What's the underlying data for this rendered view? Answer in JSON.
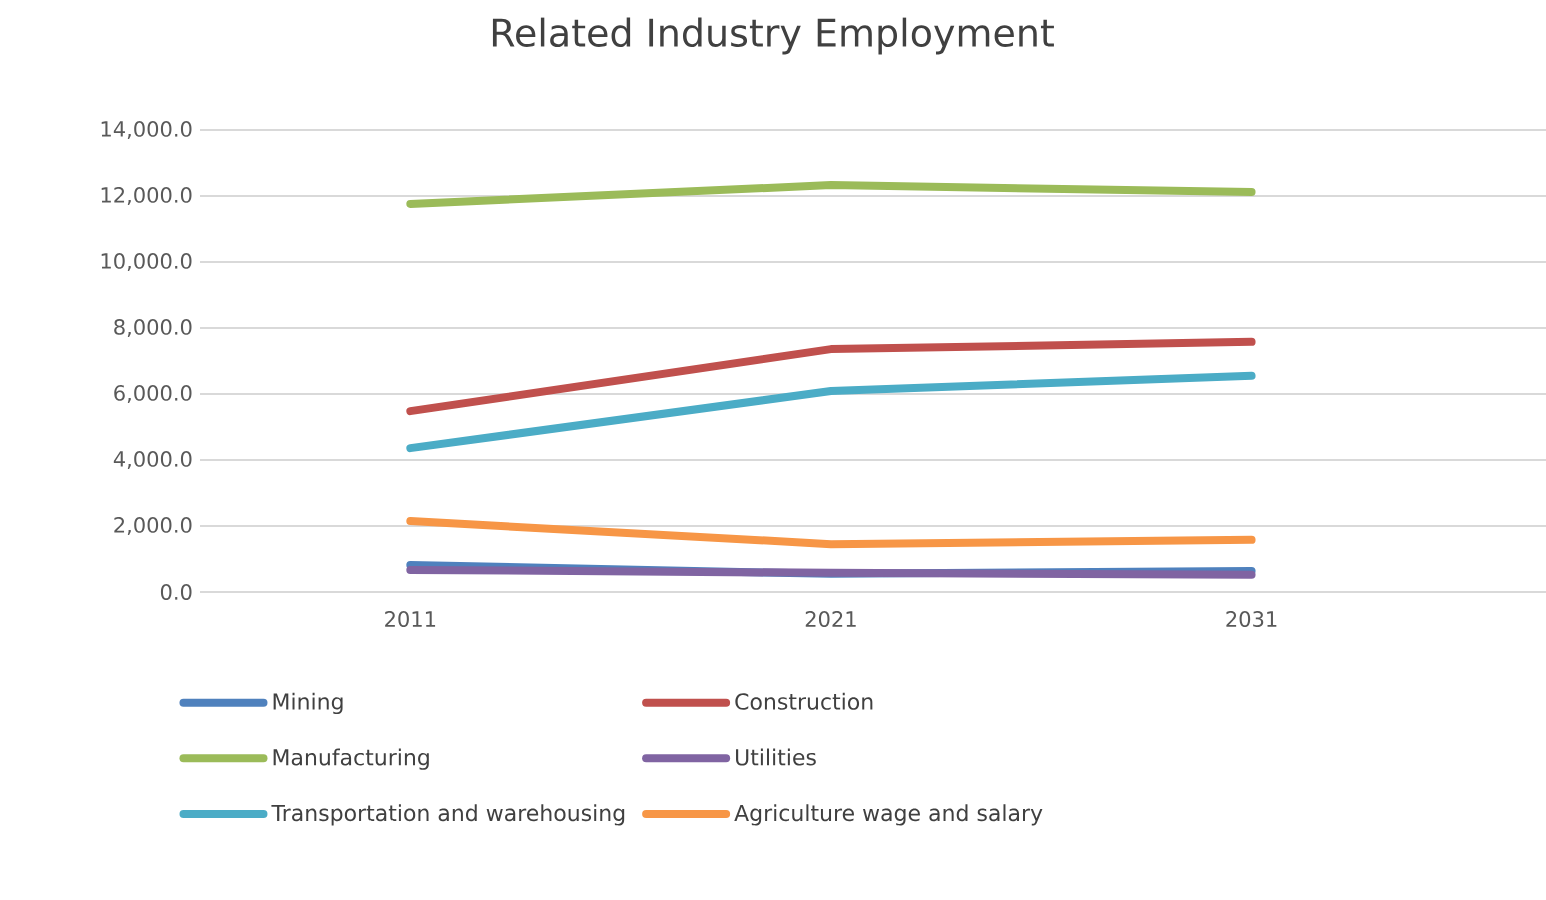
{
  "chart_data": {
    "type": "line",
    "title": "Related Industry Employment",
    "categories": [
      "2011",
      "2021",
      "2031"
    ],
    "series": [
      {
        "name": "Mining",
        "color": "#4f81bd",
        "values": [
          820,
          550,
          640
        ]
      },
      {
        "name": "Construction",
        "color": "#c0504d",
        "values": [
          5480,
          7360,
          7580
        ]
      },
      {
        "name": "Manufacturing",
        "color": "#9bbb59",
        "values": [
          11760,
          12330,
          12120
        ]
      },
      {
        "name": "Utilities",
        "color": "#8064a2",
        "values": [
          670,
          580,
          520
        ]
      },
      {
        "name": "Transportation and warehousing",
        "color": "#4bacc6",
        "values": [
          4360,
          6090,
          6550
        ]
      },
      {
        "name": "Agriculture wage and salary",
        "color": "#f79646",
        "values": [
          2150,
          1450,
          1580
        ]
      }
    ],
    "ylim": [
      0,
      14000
    ],
    "yticks": [
      {
        "value": 0,
        "label": "0.0"
      },
      {
        "value": 2000,
        "label": "2,000.0"
      },
      {
        "value": 4000,
        "label": "4,000.0"
      },
      {
        "value": 6000,
        "label": "6,000.0"
      },
      {
        "value": 8000,
        "label": "8,000.0"
      },
      {
        "value": 10000,
        "label": "10,000.0"
      },
      {
        "value": 12000,
        "label": "12,000.0"
      },
      {
        "value": 14000,
        "label": "14,000.0"
      }
    ],
    "grid": "y",
    "legend": "bottom",
    "marker": "none",
    "line_style": "solid"
  }
}
